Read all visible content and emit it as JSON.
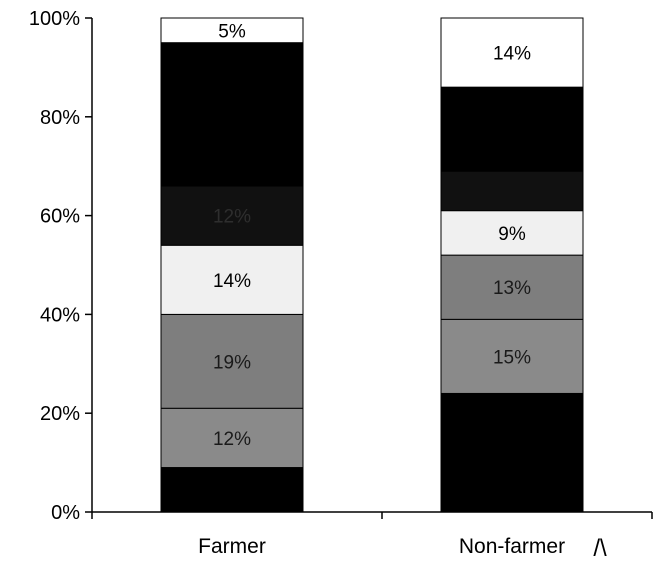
{
  "chart_data": {
    "type": "bar",
    "stacked": true,
    "ylim": [
      0,
      100
    ],
    "y_ticks": [
      "0%",
      "20%",
      "40%",
      "60%",
      "80%",
      "100%"
    ],
    "categories": [
      "Farmer",
      "Non-farmer"
    ],
    "series": [
      {
        "values": [
          9,
          24
        ],
        "labels": [
          "",
          ""
        ],
        "color": "#000000",
        "label_color": "#ffffff"
      },
      {
        "values": [
          12,
          15
        ],
        "labels": [
          "12%",
          "15%"
        ],
        "color": "#8a8a8a",
        "label_color": "#1a1a1a"
      },
      {
        "values": [
          19,
          13
        ],
        "labels": [
          "19%",
          "13%"
        ],
        "color": "#7e7e7e",
        "label_color": "#1a1a1a"
      },
      {
        "values": [
          14,
          9
        ],
        "labels": [
          "14%",
          "9%"
        ],
        "color": "#f0f0f0",
        "label_color": "#000000"
      },
      {
        "values": [
          12,
          8
        ],
        "labels": [
          "12%",
          ""
        ],
        "color": "#111111",
        "label_color": "#2e2e2e"
      },
      {
        "values": [
          29,
          17
        ],
        "labels": [
          "",
          ""
        ],
        "color": "#000000",
        "label_color": "#ffffff"
      },
      {
        "values": [
          5,
          14
        ],
        "labels": [
          "5%",
          "14%"
        ],
        "color": "#ffffff",
        "label_color": "#000000"
      }
    ],
    "grid": false,
    "legend": "none"
  },
  "annotations": {
    "caret": "/\\"
  }
}
